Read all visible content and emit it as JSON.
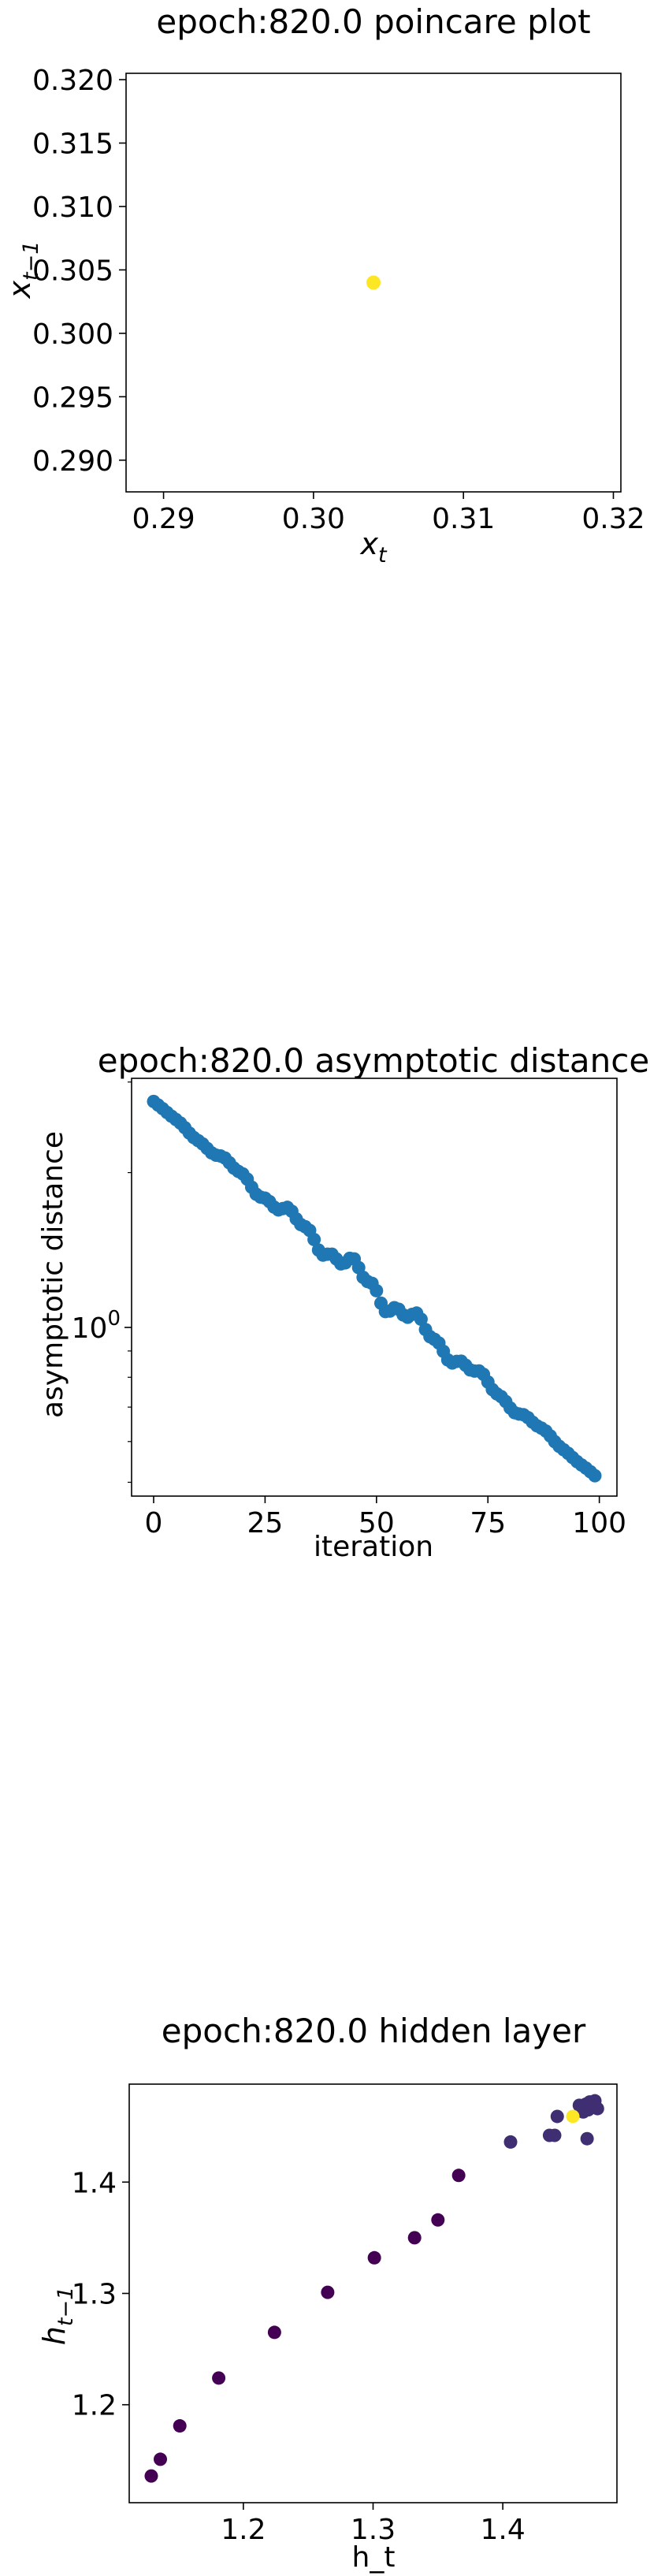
{
  "chart_data": [
    {
      "type": "scatter",
      "title": "epoch:820.0 poincare plot",
      "xlabel_base": "x",
      "xlabel_sub": "t",
      "ylabel_base": "x",
      "ylabel_sub": "t−1",
      "xlim": [
        0.2875,
        0.3205
      ],
      "ylim": [
        0.2875,
        0.3205
      ],
      "x_ticks": [
        0.29,
        0.3,
        0.31,
        0.32
      ],
      "x_tick_labels": [
        "0.29",
        "0.30",
        "0.31",
        "0.32"
      ],
      "y_ticks": [
        0.29,
        0.295,
        0.3,
        0.305,
        0.31,
        0.315,
        0.32
      ],
      "y_tick_labels": [
        "0.290",
        "0.295",
        "0.300",
        "0.305",
        "0.310",
        "0.315",
        "0.320"
      ],
      "points": [
        {
          "x": 0.304,
          "y": 0.304
        }
      ],
      "point_color": "#fde725"
    },
    {
      "type": "scatter",
      "title": "epoch:820.0 asymptotic distance",
      "xlabel": "iteration",
      "ylabel": "asymptotic distance",
      "y_scale": "log",
      "xlim": [
        -4.95,
        103.95
      ],
      "ylim": [
        0.47,
        3.05
      ],
      "x_ticks": [
        0,
        25,
        50,
        75,
        100
      ],
      "x_tick_labels": [
        "0",
        "25",
        "50",
        "75",
        "100"
      ],
      "y_major_ticks": [
        1.0
      ],
      "y_major_labels": [
        "10",
        "0"
      ],
      "y_minor_ticks": [
        0.5,
        0.6,
        0.7,
        0.8,
        0.9,
        2,
        3
      ],
      "series_start": 2.75,
      "series_end": 0.515,
      "n_points": 100,
      "point_color": "#1f77b4"
    },
    {
      "type": "scatter",
      "title": "epoch:820.0 hidden layer",
      "xlabel": "h_t",
      "ylabel_base": "h",
      "ylabel_sub": "t−1",
      "xlim": [
        1.112,
        1.488
      ],
      "ylim": [
        1.112,
        1.488
      ],
      "x_ticks": [
        1.2,
        1.3,
        1.4
      ],
      "x_tick_labels": [
        "1.2",
        "1.3",
        "1.4"
      ],
      "y_ticks": [
        1.2,
        1.3,
        1.4
      ],
      "y_tick_labels": [
        "1.2",
        "1.3",
        "1.4"
      ],
      "points": [
        {
          "x": 1.129,
          "y": 1.136
        },
        {
          "x": 1.136,
          "y": 1.151
        },
        {
          "x": 1.151,
          "y": 1.181
        },
        {
          "x": 1.181,
          "y": 1.224
        },
        {
          "x": 1.224,
          "y": 1.265
        },
        {
          "x": 1.265,
          "y": 1.301
        },
        {
          "x": 1.301,
          "y": 1.332
        },
        {
          "x": 1.332,
          "y": 1.35
        },
        {
          "x": 1.35,
          "y": 1.366
        },
        {
          "x": 1.366,
          "y": 1.406
        },
        {
          "x": 1.406,
          "y": 1.436
        },
        {
          "x": 1.436,
          "y": 1.442
        },
        {
          "x": 1.44,
          "y": 1.442
        },
        {
          "x": 1.442,
          "y": 1.459
        },
        {
          "x": 1.459,
          "y": 1.469
        },
        {
          "x": 1.462,
          "y": 1.463
        },
        {
          "x": 1.464,
          "y": 1.47
        },
        {
          "x": 1.466,
          "y": 1.465
        },
        {
          "x": 1.467,
          "y": 1.472
        },
        {
          "x": 1.471,
          "y": 1.473
        },
        {
          "x": 1.473,
          "y": 1.466
        },
        {
          "x": 1.465,
          "y": 1.439
        },
        {
          "x": 1.454,
          "y": 1.459
        }
      ],
      "color_low": "#440154",
      "color_mid": "#3b528b",
      "color_high": "#fde725"
    }
  ]
}
